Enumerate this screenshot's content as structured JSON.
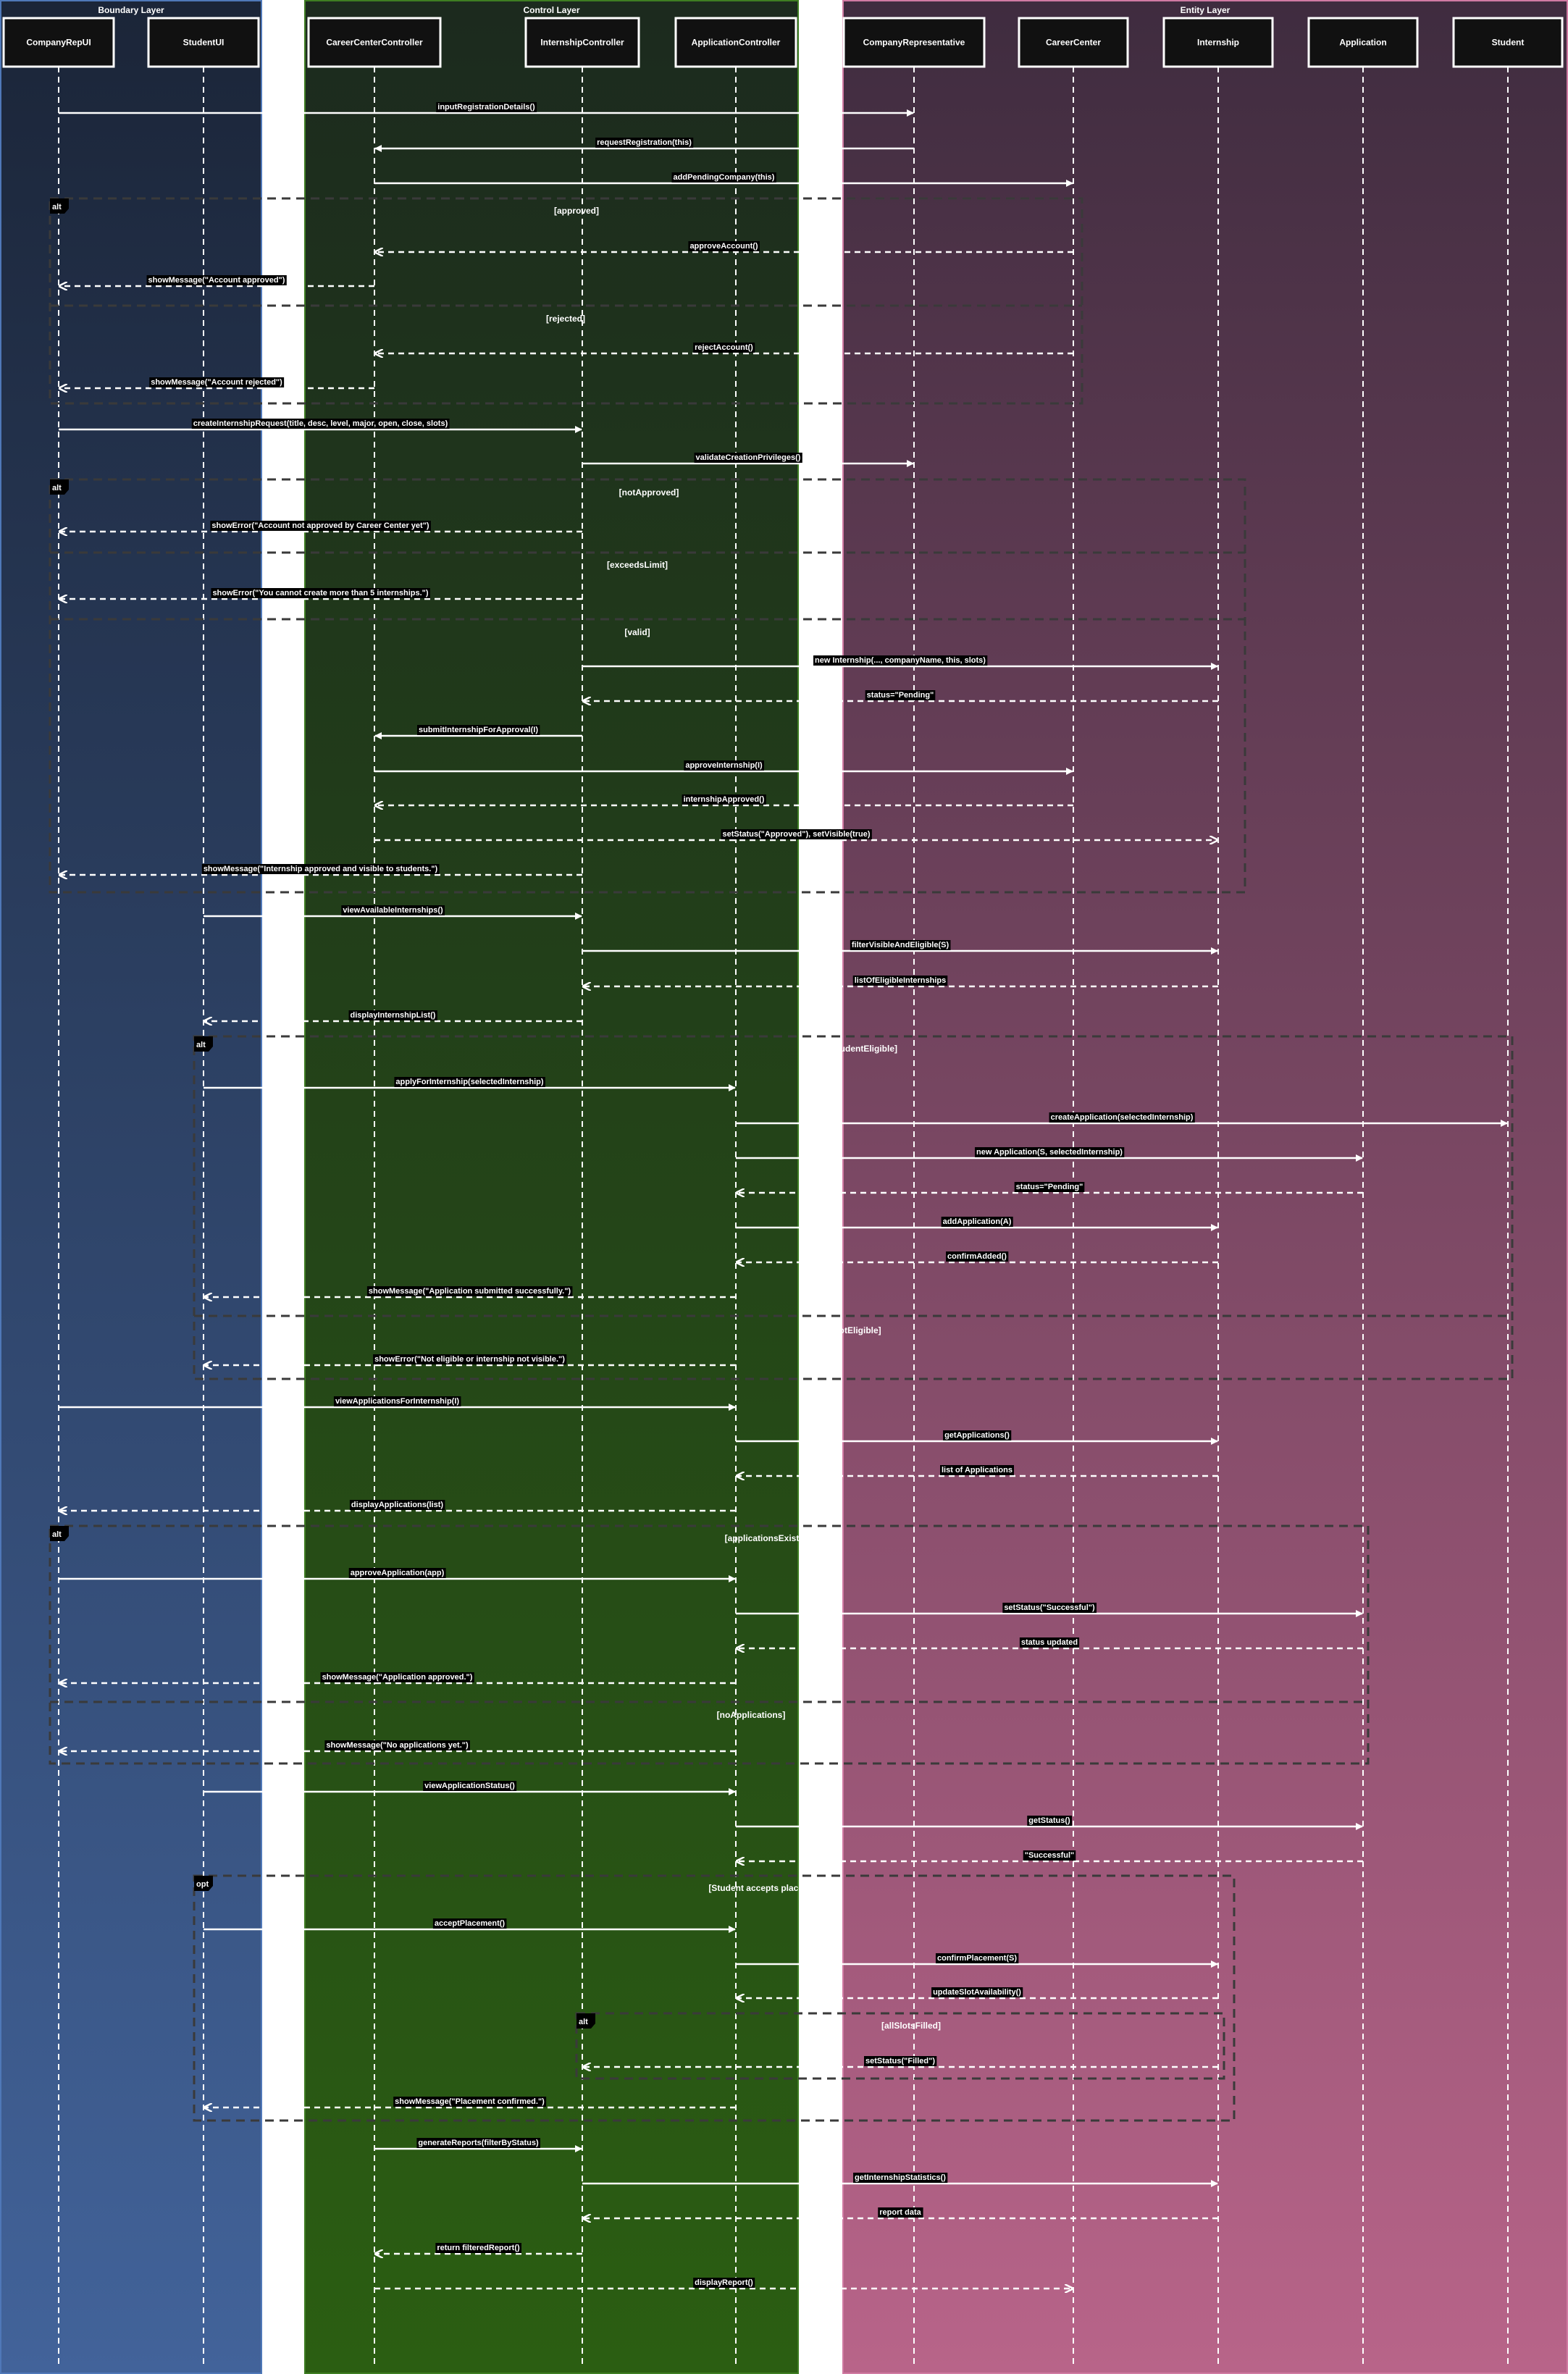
{
  "lanes": [
    {
      "title": "Boundary Layer",
      "color_top": "#1b2538",
      "color_bottom": "#42639a",
      "border": "#4f78b8"
    },
    {
      "title": "Control Layer",
      "color_top": "#1c2a1e",
      "color_bottom": "#2b5e12",
      "border": "#3e7d22"
    },
    {
      "title": "Entity Layer",
      "color_top": "#3f2c3f",
      "color_bottom": "#b86489",
      "border": "#d07aa2"
    }
  ],
  "participants": [
    {
      "id": "p0",
      "label": "CompanyRepUI"
    },
    {
      "id": "p1",
      "label": "StudentUI"
    },
    {
      "id": "p2",
      "label": "CareerCenterController"
    },
    {
      "id": "p3",
      "label": "InternshipController"
    },
    {
      "id": "p4",
      "label": "ApplicationController"
    },
    {
      "id": "p5",
      "label": "CompanyRepresentative"
    },
    {
      "id": "p6",
      "label": "CareerCenter"
    },
    {
      "id": "p7",
      "label": "Internship"
    },
    {
      "id": "p8",
      "label": "Application"
    },
    {
      "id": "p9",
      "label": "Student"
    }
  ],
  "messages": [
    {
      "from": 0,
      "to": 5,
      "label": "inputRegistrationDetails()",
      "ret": false
    },
    {
      "from": 5,
      "to": 2,
      "label": "requestRegistration(this)",
      "ret": false
    },
    {
      "from": 2,
      "to": 6,
      "label": "addPendingCompany(this)",
      "ret": false
    },
    {
      "from": 6,
      "to": 2,
      "label": "approveAccount()",
      "ret": true
    },
    {
      "from": 2,
      "to": 0,
      "label": "showMessage(\"Account approved\")",
      "ret": true
    },
    {
      "from": 6,
      "to": 2,
      "label": "rejectAccount()",
      "ret": true
    },
    {
      "from": 2,
      "to": 0,
      "label": "showMessage(\"Account rejected\")",
      "ret": true
    },
    {
      "from": 0,
      "to": 3,
      "label": "createInternshipRequest(title, desc, level, major, open, close, slots)",
      "ret": false
    },
    {
      "from": 3,
      "to": 5,
      "label": "validateCreationPrivileges()",
      "ret": false
    },
    {
      "from": 3,
      "to": 0,
      "label": "showError(\"Account not approved by Career Center yet\")",
      "ret": true
    },
    {
      "from": 3,
      "to": 0,
      "label": "showError(\"You cannot create more than 5 internships.\")",
      "ret": true
    },
    {
      "from": 3,
      "to": 7,
      "label": "new Internship(..., companyName, this, slots)",
      "ret": false
    },
    {
      "from": 7,
      "to": 3,
      "label": "status=\"Pending\"",
      "ret": true
    },
    {
      "from": 3,
      "to": 2,
      "label": "submitInternshipForApproval(I)",
      "ret": false
    },
    {
      "from": 2,
      "to": 6,
      "label": "approveInternship(I)",
      "ret": false
    },
    {
      "from": 6,
      "to": 2,
      "label": "internshipApproved()",
      "ret": true
    },
    {
      "from": 2,
      "to": 7,
      "label": "setStatus(\"Approved\"), setVisible(true)",
      "ret": true
    },
    {
      "from": 3,
      "to": 0,
      "label": "showMessage(\"Internship approved and visible to students.\")",
      "ret": true
    },
    {
      "from": 1,
      "to": 3,
      "label": "viewAvailableInternships()",
      "ret": false
    },
    {
      "from": 3,
      "to": 7,
      "label": "filterVisibleAndEligible(S)",
      "ret": false
    },
    {
      "from": 7,
      "to": 3,
      "label": "listOfEligibleInternships",
      "ret": true
    },
    {
      "from": 3,
      "to": 1,
      "label": "displayInternshipList()",
      "ret": true
    },
    {
      "from": 1,
      "to": 4,
      "label": "applyForInternship(selectedInternship)",
      "ret": false
    },
    {
      "from": 4,
      "to": 9,
      "label": "createApplication(selectedInternship)",
      "ret": false
    },
    {
      "from": 4,
      "to": 8,
      "label": "new Application(S, selectedInternship)",
      "ret": false
    },
    {
      "from": 8,
      "to": 4,
      "label": "status=\"Pending\"",
      "ret": true
    },
    {
      "from": 4,
      "to": 7,
      "label": "addApplication(A)",
      "ret": false
    },
    {
      "from": 7,
      "to": 4,
      "label": "confirmAdded()",
      "ret": true
    },
    {
      "from": 4,
      "to": 1,
      "label": "showMessage(\"Application submitted successfully.\")",
      "ret": true
    },
    {
      "from": 4,
      "to": 1,
      "label": "showError(\"Not eligible or internship not visible.\")",
      "ret": true
    },
    {
      "from": 0,
      "to": 4,
      "label": "viewApplicationsForInternship(I)",
      "ret": false
    },
    {
      "from": 4,
      "to": 7,
      "label": "getApplications()",
      "ret": false
    },
    {
      "from": 7,
      "to": 4,
      "label": "list of Applications",
      "ret": true
    },
    {
      "from": 4,
      "to": 0,
      "label": "displayApplications(list)",
      "ret": true
    },
    {
      "from": 0,
      "to": 4,
      "label": "approveApplication(app)",
      "ret": false
    },
    {
      "from": 4,
      "to": 8,
      "label": "setStatus(\"Successful\")",
      "ret": false
    },
    {
      "from": 8,
      "to": 4,
      "label": "status updated",
      "ret": true
    },
    {
      "from": 4,
      "to": 0,
      "label": "showMessage(\"Application approved.\")",
      "ret": true
    },
    {
      "from": 4,
      "to": 0,
      "label": "showMessage(\"No applications yet.\")",
      "ret": true
    },
    {
      "from": 1,
      "to": 4,
      "label": "viewApplicationStatus()",
      "ret": false
    },
    {
      "from": 4,
      "to": 8,
      "label": "getStatus()",
      "ret": false
    },
    {
      "from": 8,
      "to": 4,
      "label": "\"Successful\"",
      "ret": true
    },
    {
      "from": 1,
      "to": 4,
      "label": "acceptPlacement()",
      "ret": false
    },
    {
      "from": 4,
      "to": 7,
      "label": "confirmPlacement(S)",
      "ret": false
    },
    {
      "from": 7,
      "to": 4,
      "label": "updateSlotAvailability()",
      "ret": true
    },
    {
      "from": 7,
      "to": 3,
      "label": "setStatus(\"Filled\")",
      "ret": true
    },
    {
      "from": 4,
      "to": 1,
      "label": "showMessage(\"Placement confirmed.\")",
      "ret": true
    },
    {
      "from": 2,
      "to": 3,
      "label": "generateReports(filterByStatus)",
      "ret": false
    },
    {
      "from": 3,
      "to": 7,
      "label": "getInternshipStatistics()",
      "ret": false
    },
    {
      "from": 7,
      "to": 3,
      "label": "report data",
      "ret": true
    },
    {
      "from": 3,
      "to": 2,
      "label": "return filteredReport()",
      "ret": true
    },
    {
      "from": 2,
      "to": 6,
      "label": "displayReport()",
      "ret": true
    }
  ],
  "fragments": [
    {
      "keyword": "alt",
      "guards": [
        "[approved]",
        "[rejected]"
      ]
    },
    {
      "keyword": "alt",
      "guards": [
        "[notApproved]",
        "[exceedsLimit]",
        "[valid]"
      ]
    },
    {
      "keyword": "alt",
      "guards": [
        "[studentEligible]",
        "[notEligible]"
      ]
    },
    {
      "keyword": "alt",
      "guards": [
        "[applicationsExist]",
        "[noApplications]"
      ]
    },
    {
      "keyword": "opt",
      "guards": [
        "[Student accepts placement]"
      ]
    },
    {
      "keyword": "alt",
      "guards": [
        "[allSlotsFilled]"
      ]
    }
  ],
  "colors": {
    "white": "#ffffff",
    "participant_fill": "#111111",
    "fragment_line": "#3a3a3a",
    "label_bg": "#000000"
  }
}
